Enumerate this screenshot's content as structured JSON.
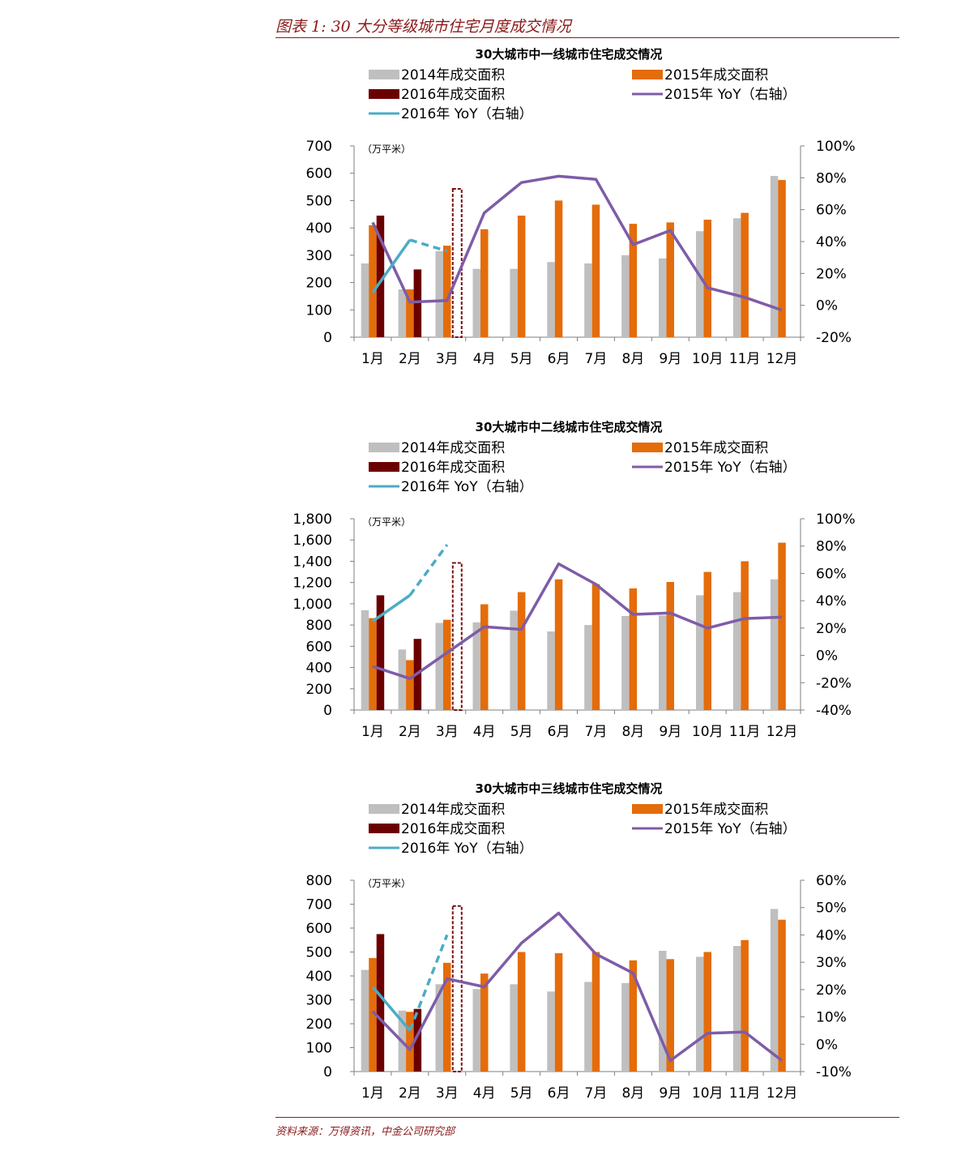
{
  "page": {
    "header_title": "图表 1: 30 大分等级城市住宅月度成交情况",
    "source": "资料来源：万得资讯，中金公司研究部"
  },
  "colors": {
    "s2014": "#bfbfbf",
    "s2015": "#e46c0a",
    "s2016": "#6b0000",
    "yoy2015": "#7e5ca8",
    "yoy2016": "#4bacc6",
    "highlight": "#7a1010",
    "axis": "#7f7f7f"
  },
  "legend": {
    "s2014": "2014年成交面积",
    "s2015": "2015年成交面积",
    "s2016": "2016年成交面积",
    "yoy2015": "2015年 YoY（右轴）",
    "yoy2016": "2016年 YoY（右轴）"
  },
  "chart_data": [
    {
      "type": "bar",
      "title": "30大城市中一线城市住宅成交情况",
      "unit_label": "（万平米）",
      "categories": [
        "1月",
        "2月",
        "3月",
        "4月",
        "5月",
        "6月",
        "7月",
        "8月",
        "9月",
        "10月",
        "11月",
        "12月"
      ],
      "ylim": [
        0,
        700
      ],
      "yticks": [
        0,
        100,
        200,
        300,
        400,
        500,
        600,
        700
      ],
      "ytick_labels": [
        "0",
        "100",
        "200",
        "300",
        "400",
        "500",
        "600",
        "700"
      ],
      "y2lim": [
        -20,
        100
      ],
      "y2ticks": [
        -20,
        0,
        20,
        40,
        60,
        80,
        100
      ],
      "y2tick_labels": [
        "-20%",
        "0%",
        "20%",
        "40%",
        "60%",
        "80%",
        "100%"
      ],
      "highlight_category": 2,
      "series": [
        {
          "name": "2014年成交面积",
          "type": "bar",
          "values": [
            270,
            175,
            315,
            250,
            250,
            275,
            270,
            300,
            288,
            388,
            435,
            590
          ]
        },
        {
          "name": "2015年成交面积",
          "type": "bar",
          "values": [
            410,
            175,
            335,
            395,
            445,
            500,
            485,
            415,
            420,
            430,
            455,
            575
          ]
        },
        {
          "name": "2016年成交面积",
          "type": "bar",
          "values": [
            445,
            248,
            null,
            null,
            null,
            null,
            null,
            null,
            null,
            null,
            null,
            null
          ]
        },
        {
          "name": "2015年 YoY（右轴）",
          "type": "line",
          "axis": "right",
          "values": [
            52,
            2,
            3,
            58,
            77,
            81,
            79,
            38,
            47,
            11,
            5,
            -3
          ]
        },
        {
          "name": "2016年 YoY（右轴）",
          "type": "line",
          "axis": "right",
          "values": [
            8,
            41,
            34,
            null,
            null,
            null,
            null,
            null,
            null,
            null,
            null,
            null
          ],
          "dashed_from": 1
        }
      ],
      "grid": false,
      "legend_position": "top"
    },
    {
      "type": "bar",
      "title": "30大城市中二线城市住宅成交情况",
      "unit_label": "（万平米）",
      "categories": [
        "1月",
        "2月",
        "3月",
        "4月",
        "5月",
        "6月",
        "7月",
        "8月",
        "9月",
        "10月",
        "11月",
        "12月"
      ],
      "ylim": [
        0,
        1800
      ],
      "yticks": [
        0,
        200,
        400,
        600,
        800,
        1000,
        1200,
        1400,
        1600,
        1800
      ],
      "ytick_labels": [
        "0",
        "200",
        "400",
        "600",
        "800",
        "1,000",
        "1,200",
        "1,400",
        "1,600",
        "1,800"
      ],
      "y2lim": [
        -40,
        100
      ],
      "y2ticks": [
        -40,
        -20,
        0,
        20,
        40,
        60,
        80,
        100
      ],
      "y2tick_labels": [
        "-40%",
        "-20%",
        "0%",
        "20%",
        "40%",
        "60%",
        "80%",
        "100%"
      ],
      "highlight_category": 2,
      "series": [
        {
          "name": "2014年成交面积",
          "type": "bar",
          "values": [
            940,
            570,
            820,
            825,
            935,
            740,
            800,
            885,
            890,
            1080,
            1110,
            1230
          ]
        },
        {
          "name": "2015年成交面积",
          "type": "bar",
          "values": [
            865,
            470,
            850,
            995,
            1110,
            1230,
            1185,
            1145,
            1205,
            1300,
            1400,
            1575
          ]
        },
        {
          "name": "2016年成交面积",
          "type": "bar",
          "values": [
            1080,
            670,
            null,
            null,
            null,
            null,
            null,
            null,
            null,
            null,
            null,
            null
          ]
        },
        {
          "name": "2015年 YoY（右轴）",
          "type": "line",
          "axis": "right",
          "values": [
            -8,
            -17,
            2,
            21,
            19,
            67,
            52,
            30,
            31,
            20,
            27,
            28
          ]
        },
        {
          "name": "2016年 YoY（右轴）",
          "type": "line",
          "axis": "right",
          "values": [
            25,
            44,
            81,
            null,
            null,
            null,
            null,
            null,
            null,
            null,
            null,
            null
          ],
          "dashed_from": 1
        }
      ],
      "grid": false,
      "legend_position": "top"
    },
    {
      "type": "bar",
      "title": "30大城市中三线城市住宅成交情况",
      "unit_label": "（万平米）",
      "categories": [
        "1月",
        "2月",
        "3月",
        "4月",
        "5月",
        "6月",
        "7月",
        "8月",
        "9月",
        "10月",
        "11月",
        "12月"
      ],
      "ylim": [
        0,
        800
      ],
      "yticks": [
        0,
        100,
        200,
        300,
        400,
        500,
        600,
        700,
        800
      ],
      "ytick_labels": [
        "0",
        "100",
        "200",
        "300",
        "400",
        "500",
        "600",
        "700",
        "800"
      ],
      "y2lim": [
        -10,
        60
      ],
      "y2ticks": [
        -10,
        0,
        10,
        20,
        30,
        40,
        50,
        60
      ],
      "y2tick_labels": [
        "-10%",
        "0%",
        "10%",
        "20%",
        "30%",
        "40%",
        "50%",
        "60%"
      ],
      "highlight_category": 2,
      "series": [
        {
          "name": "2014年成交面积",
          "type": "bar",
          "values": [
            425,
            255,
            365,
            345,
            365,
            335,
            375,
            370,
            505,
            480,
            525,
            680
          ]
        },
        {
          "name": "2015年成交面积",
          "type": "bar",
          "values": [
            475,
            250,
            455,
            410,
            500,
            495,
            500,
            465,
            470,
            500,
            550,
            635
          ]
        },
        {
          "name": "2016年成交面积",
          "type": "bar",
          "values": [
            575,
            262,
            null,
            null,
            null,
            null,
            null,
            null,
            null,
            null,
            null,
            null
          ]
        },
        {
          "name": "2015年 YoY（右轴）",
          "type": "line",
          "axis": "right",
          "values": [
            12,
            -2,
            24,
            21,
            37,
            48,
            33,
            26,
            -6,
            4,
            4.5,
            -6
          ]
        },
        {
          "name": "2016年 YoY（右轴）",
          "type": "line",
          "axis": "right",
          "values": [
            21,
            5,
            40,
            null,
            null,
            null,
            null,
            null,
            null,
            null,
            null,
            null
          ],
          "dashed_from": 1
        }
      ],
      "grid": false,
      "legend_position": "top"
    }
  ]
}
